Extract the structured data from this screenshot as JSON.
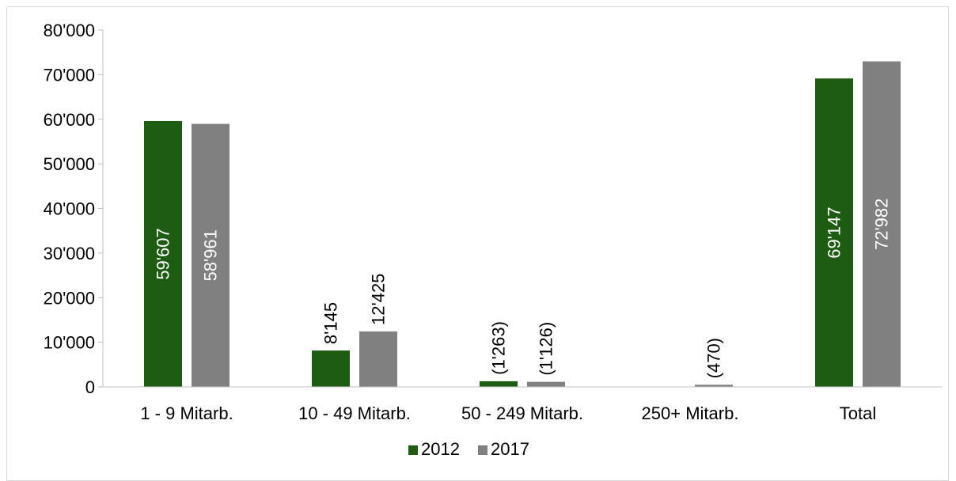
{
  "chart_data": {
    "type": "bar",
    "title": "",
    "xlabel": "",
    "ylabel": "",
    "categories": [
      "1 - 9 Mitarb.",
      "10 - 49 Mitarb.",
      "50 - 249 Mitarb.",
      "250+ Mitarb.",
      "Total"
    ],
    "series": [
      {
        "name": "2012",
        "color": "#1e5c14",
        "label_color_inside": "#ffffff",
        "values": [
          59607,
          8145,
          1263,
          0,
          69147
        ],
        "labels": [
          "59'607",
          "8'145",
          "(1'263)",
          "",
          "69'147"
        ]
      },
      {
        "name": "2017",
        "color": "#808080",
        "label_color_inside": "#ffffff",
        "values": [
          58961,
          12425,
          1126,
          470,
          72982
        ],
        "labels": [
          "58'961",
          "12'425",
          "(1'126)",
          "(470)",
          "72'982"
        ]
      }
    ],
    "ylim": [
      0,
      80000
    ],
    "yticks": [
      0,
      10000,
      20000,
      30000,
      40000,
      50000,
      60000,
      70000,
      80000
    ],
    "ytick_labels": [
      "0",
      "10'000",
      "20'000",
      "30'000",
      "40'000",
      "50'000",
      "60'000",
      "70'000",
      "80'000"
    ],
    "grid": false,
    "legend_position": "bottom-center"
  }
}
